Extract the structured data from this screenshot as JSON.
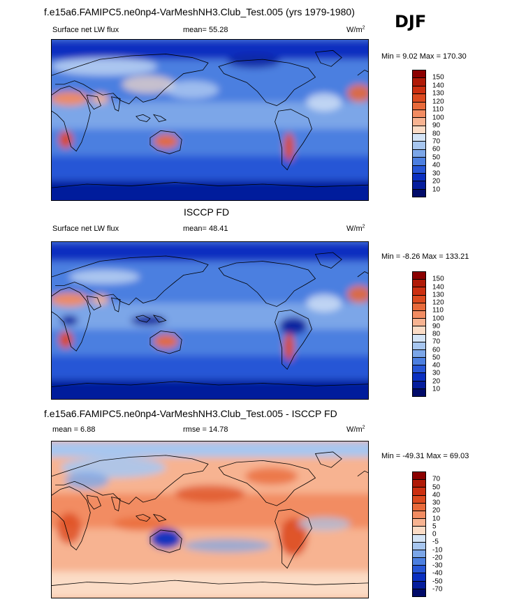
{
  "season": "DJF",
  "panels": [
    {
      "title": "f.e15a6.FAMIPC5.ne0np4-VarMeshNH3.Club_Test.005 (yrs 1979-1980)",
      "left_label": "Surface net LW flux",
      "center_label": "mean=  55.28",
      "units": "W/m",
      "units_sup": "2",
      "minmax": "Min =   9.02 Max = 170.30",
      "colorbar": {
        "labels": [
          "150",
          "140",
          "130",
          "120",
          "110",
          "100",
          "90",
          "80",
          "70",
          "60",
          "50",
          "40",
          "30",
          "20",
          "10"
        ],
        "colors": [
          "#8b0000",
          "#b01a07",
          "#cc2f10",
          "#dc4a1f",
          "#e86a3a",
          "#f28c62",
          "#f7b391",
          "#fbdcc6",
          "#d4e4f6",
          "#a7c6ef",
          "#7ba6e8",
          "#4c7fe0",
          "#2756d6",
          "#0a2fc0",
          "#051d9c",
          "#020c6a"
        ]
      },
      "field": "base"
    },
    {
      "title": "ISCCP FD",
      "left_label": "Surface net LW flux",
      "center_label": "mean=  48.41",
      "units": "W/m",
      "units_sup": "2",
      "minmax": "Min =  -8.26 Max = 133.21",
      "colorbar": {
        "labels": [
          "150",
          "140",
          "130",
          "120",
          "110",
          "100",
          "90",
          "80",
          "70",
          "60",
          "50",
          "40",
          "30",
          "20",
          "10"
        ],
        "colors": [
          "#8b0000",
          "#b01a07",
          "#cc2f10",
          "#dc4a1f",
          "#e86a3a",
          "#f28c62",
          "#f7b391",
          "#fbdcc6",
          "#d4e4f6",
          "#a7c6ef",
          "#7ba6e8",
          "#4c7fe0",
          "#2756d6",
          "#0a2fc0",
          "#051d9c",
          "#020c6a"
        ]
      },
      "field": "obs"
    },
    {
      "title": "f.e15a6.FAMIPC5.ne0np4-VarMeshNH3.Club_Test.005 - ISCCP FD",
      "left_label": "mean =   6.88",
      "center_label": "rmse =  14.78",
      "units": "W/m",
      "units_sup": "2",
      "minmax": "Min = -49.31 Max =  69.03",
      "colorbar": {
        "labels": [
          "70",
          "50",
          "40",
          "30",
          "20",
          "10",
          "5",
          "0",
          "-5",
          "-10",
          "-20",
          "-30",
          "-40",
          "-50",
          "-70"
        ],
        "colors": [
          "#8b0000",
          "#b01a07",
          "#cc2f10",
          "#dc4a1f",
          "#e86a3a",
          "#f28c62",
          "#f7b391",
          "#fbdcc6",
          "#d4e4f6",
          "#a7c6ef",
          "#7ba6e8",
          "#4c7fe0",
          "#2756d6",
          "#0a2fc0",
          "#051d9c",
          "#020c6a"
        ]
      },
      "field": "diff"
    }
  ]
}
